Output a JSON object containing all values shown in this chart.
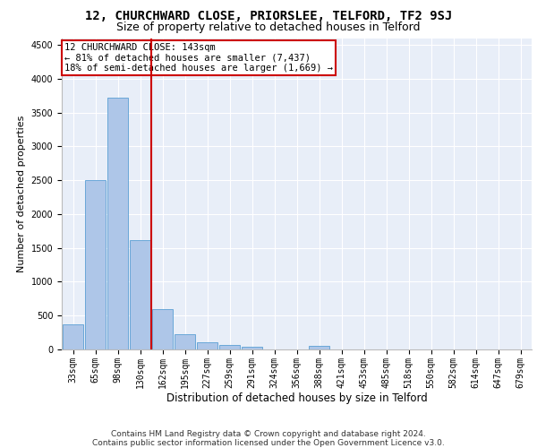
{
  "title1": "12, CHURCHWARD CLOSE, PRIORSLEE, TELFORD, TF2 9SJ",
  "title2": "Size of property relative to detached houses in Telford",
  "xlabel": "Distribution of detached houses by size in Telford",
  "ylabel": "Number of detached properties",
  "footnote": "Contains HM Land Registry data © Crown copyright and database right 2024.\nContains public sector information licensed under the Open Government Licence v3.0.",
  "categories": [
    "33sqm",
    "65sqm",
    "98sqm",
    "130sqm",
    "162sqm",
    "195sqm",
    "227sqm",
    "259sqm",
    "291sqm",
    "324sqm",
    "356sqm",
    "388sqm",
    "421sqm",
    "453sqm",
    "485sqm",
    "518sqm",
    "550sqm",
    "582sqm",
    "614sqm",
    "647sqm",
    "679sqm"
  ],
  "values": [
    370,
    2500,
    3720,
    1620,
    590,
    230,
    105,
    60,
    35,
    0,
    0,
    55,
    0,
    0,
    0,
    0,
    0,
    0,
    0,
    0,
    0
  ],
  "bar_color": "#aec6e8",
  "bar_edge_color": "#5a9fd4",
  "vline_x": 3.5,
  "annotation_title": "12 CHURCHWARD CLOSE: 143sqm",
  "annotation_line1": "← 81% of detached houses are smaller (7,437)",
  "annotation_line2": "18% of semi-detached houses are larger (1,669) →",
  "annotation_box_color": "#ffffff",
  "annotation_box_edge": "#cc0000",
  "vline_color": "#cc0000",
  "ylim": [
    0,
    4600
  ],
  "yticks": [
    0,
    500,
    1000,
    1500,
    2000,
    2500,
    3000,
    3500,
    4000,
    4500
  ],
  "bg_color": "#e8eef8",
  "fig_bg_color": "#ffffff",
  "title1_fontsize": 10,
  "title2_fontsize": 9,
  "xlabel_fontsize": 8.5,
  "ylabel_fontsize": 8,
  "tick_fontsize": 7,
  "footnote_fontsize": 6.5,
  "ann_fontsize": 7.5
}
